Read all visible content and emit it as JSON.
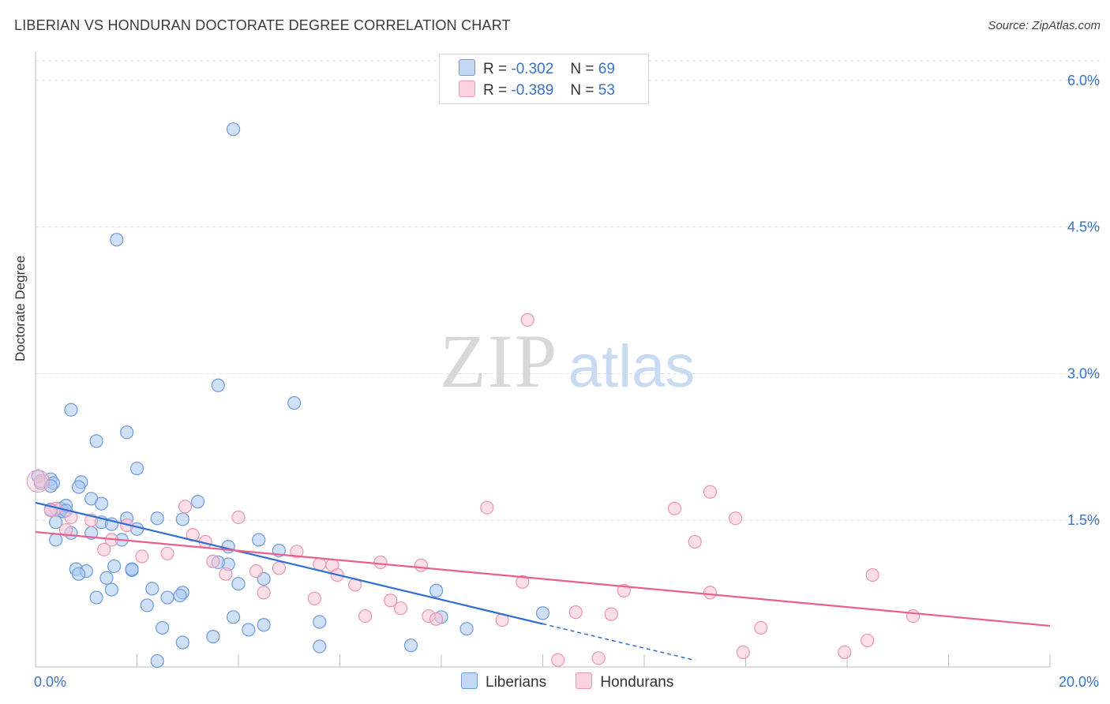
{
  "title": "LIBERIAN VS HONDURAN DOCTORATE DEGREE CORRELATION CHART",
  "source": "Source: ZipAtlas.com",
  "watermark": {
    "zip": "ZIP",
    "atlas": "atlas"
  },
  "legend": {
    "r_label": "R =",
    "n_label": "N =",
    "liberian": {
      "r": "-0.302",
      "n": "69"
    },
    "honduran": {
      "r": "-0.389",
      "n": "53"
    }
  },
  "bottom_legend": {
    "liberians": "Liberians",
    "hondurans": "Hondurans"
  },
  "colors": {
    "liberian_fill": "#aac8f0",
    "liberian_stroke": "#6a9ae0",
    "liberian_line": "#2f6fd0",
    "honduran_fill": "#f6c4d4",
    "honduran_stroke": "#ec94b4",
    "honduran_line": "#e8608e",
    "tick_text": "#3a72c8",
    "grid": "#dcdcdc"
  },
  "chart_data": {
    "type": "scatter",
    "title": "LIBERIAN VS HONDURAN DOCTORATE DEGREE CORRELATION CHART",
    "xlabel": "",
    "ylabel": "Doctorate Degree",
    "xlim": [
      0,
      20
    ],
    "ylim": [
      0,
      6.2
    ],
    "x_tick_labels": [
      {
        "value": 0,
        "label": "0.0%"
      },
      {
        "value": 20,
        "label": "20.0%"
      }
    ],
    "y_tick_labels": [
      {
        "value": 1.5,
        "label": "1.5%"
      },
      {
        "value": 3.0,
        "label": "3.0%"
      },
      {
        "value": 4.5,
        "label": "4.5%"
      },
      {
        "value": 6.0,
        "label": "6.0%"
      }
    ],
    "series": [
      {
        "name": "Liberians",
        "r": -0.302,
        "n": 69,
        "trend": {
          "x0": 0.0,
          "y0": 1.68,
          "x1": 10.0,
          "y1": 0.44,
          "dashed_to_x": 13.0
        },
        "points": [
          [
            3.9,
            5.5
          ],
          [
            1.6,
            4.37
          ],
          [
            3.6,
            2.88
          ],
          [
            5.1,
            2.7
          ],
          [
            0.7,
            2.63
          ],
          [
            1.8,
            2.4
          ],
          [
            1.2,
            2.31
          ],
          [
            2.0,
            2.03
          ],
          [
            0.05,
            1.95
          ],
          [
            0.1,
            1.88
          ],
          [
            0.3,
            1.92
          ],
          [
            0.35,
            1.88
          ],
          [
            0.9,
            1.89
          ],
          [
            0.85,
            1.84
          ],
          [
            0.3,
            1.61
          ],
          [
            0.5,
            1.62
          ],
          [
            0.55,
            1.59
          ],
          [
            0.6,
            1.65
          ],
          [
            1.1,
            1.72
          ],
          [
            1.3,
            1.67
          ],
          [
            3.2,
            1.69
          ],
          [
            0.6,
            1.6
          ],
          [
            0.4,
            1.48
          ],
          [
            1.3,
            1.48
          ],
          [
            1.5,
            1.46
          ],
          [
            1.8,
            1.52
          ],
          [
            2.4,
            1.52
          ],
          [
            2.9,
            1.51
          ],
          [
            0.7,
            1.37
          ],
          [
            1.1,
            1.37
          ],
          [
            2.0,
            1.41
          ],
          [
            0.4,
            1.3
          ],
          [
            1.7,
            1.3
          ],
          [
            3.8,
            1.23
          ],
          [
            4.4,
            1.3
          ],
          [
            4.8,
            1.19
          ],
          [
            3.8,
            1.05
          ],
          [
            3.6,
            1.07
          ],
          [
            1.55,
            1.03
          ],
          [
            1.9,
            0.99
          ],
          [
            0.8,
            1.0
          ],
          [
            1.0,
            0.98
          ],
          [
            0.85,
            0.95
          ],
          [
            1.4,
            0.91
          ],
          [
            4.0,
            0.85
          ],
          [
            4.5,
            0.9
          ],
          [
            1.5,
            0.79
          ],
          [
            2.3,
            0.8
          ],
          [
            2.9,
            0.76
          ],
          [
            2.85,
            0.73
          ],
          [
            7.9,
            0.78
          ],
          [
            1.2,
            0.71
          ],
          [
            2.6,
            0.71
          ],
          [
            2.2,
            0.63
          ],
          [
            3.9,
            0.51
          ],
          [
            8.0,
            0.51
          ],
          [
            10.0,
            0.55
          ],
          [
            4.5,
            0.43
          ],
          [
            5.6,
            0.46
          ],
          [
            2.5,
            0.4
          ],
          [
            4.2,
            0.38
          ],
          [
            8.5,
            0.39
          ],
          [
            3.5,
            0.31
          ],
          [
            2.9,
            0.25
          ],
          [
            5.6,
            0.21
          ],
          [
            7.4,
            0.22
          ],
          [
            2.4,
            0.06
          ],
          [
            0.3,
            1.85
          ],
          [
            1.9,
            1.0
          ]
        ]
      },
      {
        "name": "Hondurans",
        "r": -0.389,
        "n": 53,
        "trend": {
          "x0": 0.0,
          "y0": 1.38,
          "x1": 20.0,
          "y1": 0.42
        },
        "points": [
          [
            0.1,
            1.9
          ],
          [
            0.4,
            1.62
          ],
          [
            0.7,
            1.53
          ],
          [
            0.6,
            1.4
          ],
          [
            1.1,
            1.5
          ],
          [
            1.5,
            1.3
          ],
          [
            1.35,
            1.2
          ],
          [
            1.8,
            1.45
          ],
          [
            2.1,
            1.13
          ],
          [
            2.6,
            1.16
          ],
          [
            2.95,
            1.64
          ],
          [
            3.1,
            1.35
          ],
          [
            3.35,
            1.28
          ],
          [
            3.5,
            1.08
          ],
          [
            3.75,
            0.95
          ],
          [
            4.0,
            1.53
          ],
          [
            4.35,
            0.98
          ],
          [
            4.5,
            0.76
          ],
          [
            4.8,
            1.01
          ],
          [
            5.15,
            1.18
          ],
          [
            5.5,
            0.7
          ],
          [
            5.6,
            1.05
          ],
          [
            5.85,
            1.04
          ],
          [
            5.95,
            0.94
          ],
          [
            6.3,
            0.84
          ],
          [
            6.5,
            0.52
          ],
          [
            6.8,
            1.07
          ],
          [
            7.0,
            0.68
          ],
          [
            7.2,
            0.6
          ],
          [
            7.6,
            1.04
          ],
          [
            7.75,
            0.52
          ],
          [
            7.9,
            0.49
          ],
          [
            8.9,
            1.63
          ],
          [
            9.2,
            0.48
          ],
          [
            9.6,
            0.87
          ],
          [
            9.7,
            3.55
          ],
          [
            10.3,
            0.07
          ],
          [
            10.65,
            0.56
          ],
          [
            11.1,
            0.09
          ],
          [
            11.35,
            0.54
          ],
          [
            11.6,
            0.78
          ],
          [
            12.6,
            1.62
          ],
          [
            13.0,
            1.28
          ],
          [
            13.3,
            0.76
          ],
          [
            13.3,
            1.79
          ],
          [
            13.8,
            1.52
          ],
          [
            13.95,
            0.15
          ],
          [
            14.3,
            0.4
          ],
          [
            15.95,
            0.15
          ],
          [
            16.4,
            0.27
          ],
          [
            16.5,
            0.94
          ],
          [
            17.3,
            0.52
          ],
          [
            0.3,
            1.6
          ]
        ]
      }
    ]
  }
}
